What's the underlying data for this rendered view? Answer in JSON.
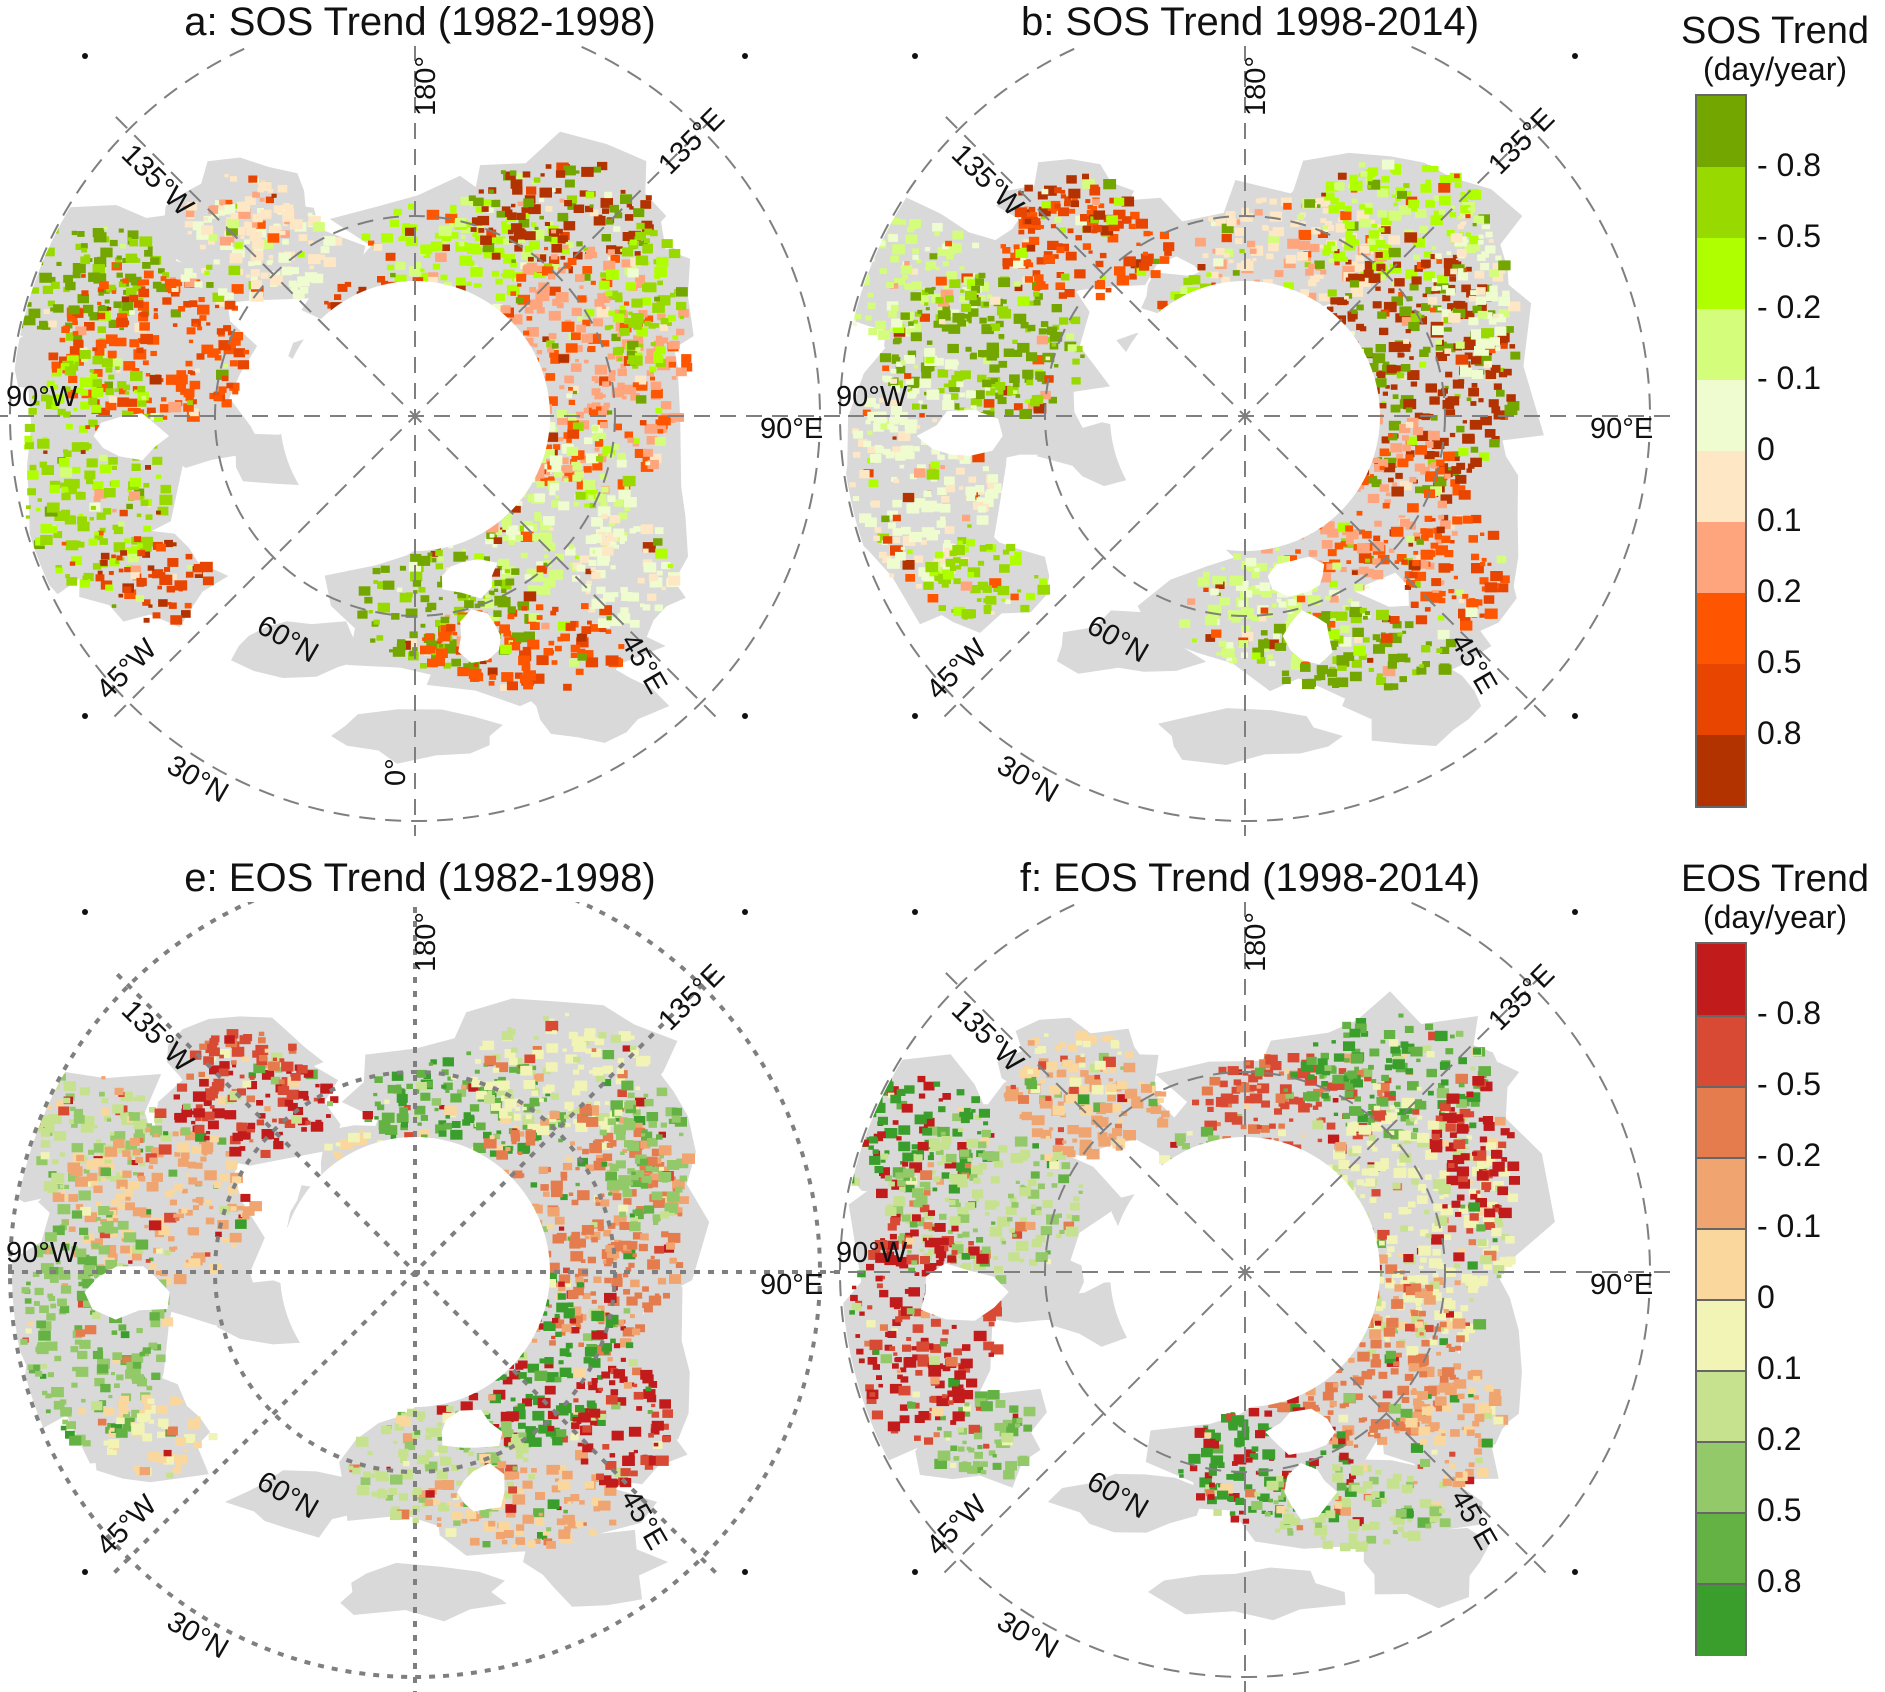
{
  "panels": [
    {
      "id": "a",
      "title": "a: SOS Trend (1982-1998)",
      "scheme": "sos",
      "dotted_grid": false
    },
    {
      "id": "b",
      "title": "b: SOS Trend 1998-2014)",
      "scheme": "sos",
      "dotted_grid": false
    },
    {
      "id": "e",
      "title": "e: EOS Trend (1982-1998)",
      "scheme": "eos",
      "dotted_grid": true
    },
    {
      "id": "f",
      "title": "f: EOS Trend (1998-2014)",
      "scheme": "eos",
      "dotted_grid": false
    }
  ],
  "map_labels": {
    "lon_180": "180°",
    "lon_135w": "135°W",
    "lon_135e": "135°E",
    "lon_90w": "90°W",
    "lon_90e": "90°E",
    "lon_45w": "45°W",
    "lon_45e": "45°E",
    "lon_0": "0°",
    "lat_60n": "60°N",
    "lat_30n": "30°N"
  },
  "legends": {
    "sos": {
      "title": "SOS Trend",
      "unit": "(day/year)",
      "labels": [
        "- 0.8",
        "- 0.5",
        "- 0.2",
        "- 0.1",
        "0",
        "0.1",
        "0.2",
        "0.5",
        "0.8"
      ],
      "colors": [
        "#73a700",
        "#98d900",
        "#b0ff00",
        "#d4fd7c",
        "#effcd0",
        "#fde7c4",
        "#fea57e",
        "#fe5500",
        "#e84600",
        "#b33300"
      ]
    },
    "eos": {
      "title": "EOS Trend",
      "unit": "(day/year)",
      "labels": [
        "- 0.8",
        "- 0.5",
        "- 0.2",
        "- 0.1",
        "0",
        "0.1",
        "0.2",
        "0.5",
        "0.8"
      ],
      "colors": [
        "#c21b1b",
        "#d84a33",
        "#e57c4e",
        "#f0a46f",
        "#fad79c",
        "#f2f4b6",
        "#c7e28e",
        "#93c968",
        "#64b243",
        "#3a9e2c"
      ]
    }
  },
  "colors": {
    "land_no_data": "#d9d9d9",
    "grid_line": "#7f7f7f",
    "background": "#ffffff"
  }
}
